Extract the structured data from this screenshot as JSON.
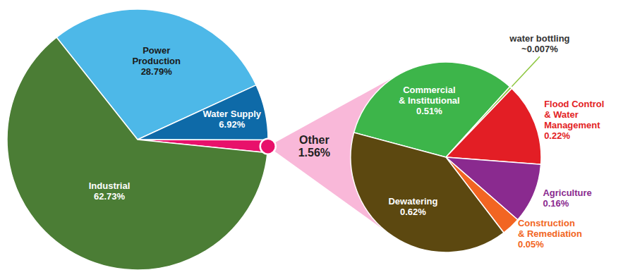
{
  "chart_data": [
    {
      "type": "pie",
      "categories": [
        "Power Production",
        "Water Supply",
        "Other",
        "Industrial"
      ],
      "values": [
        28.79,
        6.92,
        1.56,
        62.73
      ],
      "value_labels": [
        "28.79%",
        "6.92%",
        "1.56%",
        "62.73%"
      ],
      "colors": [
        "#4db8e8",
        "#0e6aa8",
        "#e8116b",
        "#4b7d35"
      ],
      "data_labels": true
    },
    {
      "type": "pie",
      "categories": [
        "Commercial & Institutional",
        "water bottling",
        "Flood Control & Water Management",
        "Agriculture",
        "Construction & Remediation",
        "Dewatering"
      ],
      "values": [
        0.51,
        0.007,
        0.22,
        0.16,
        0.05,
        0.62
      ],
      "value_labels": [
        "0.51%",
        "~0.007%",
        "0.22%",
        "0.16%",
        "0.05%",
        "0.62%"
      ],
      "colors": [
        "#3db54a",
        "#8dc63f",
        "#e31e25",
        "#8a2a8f",
        "#f26522",
        "#5c4810"
      ],
      "data_labels": true
    }
  ]
}
